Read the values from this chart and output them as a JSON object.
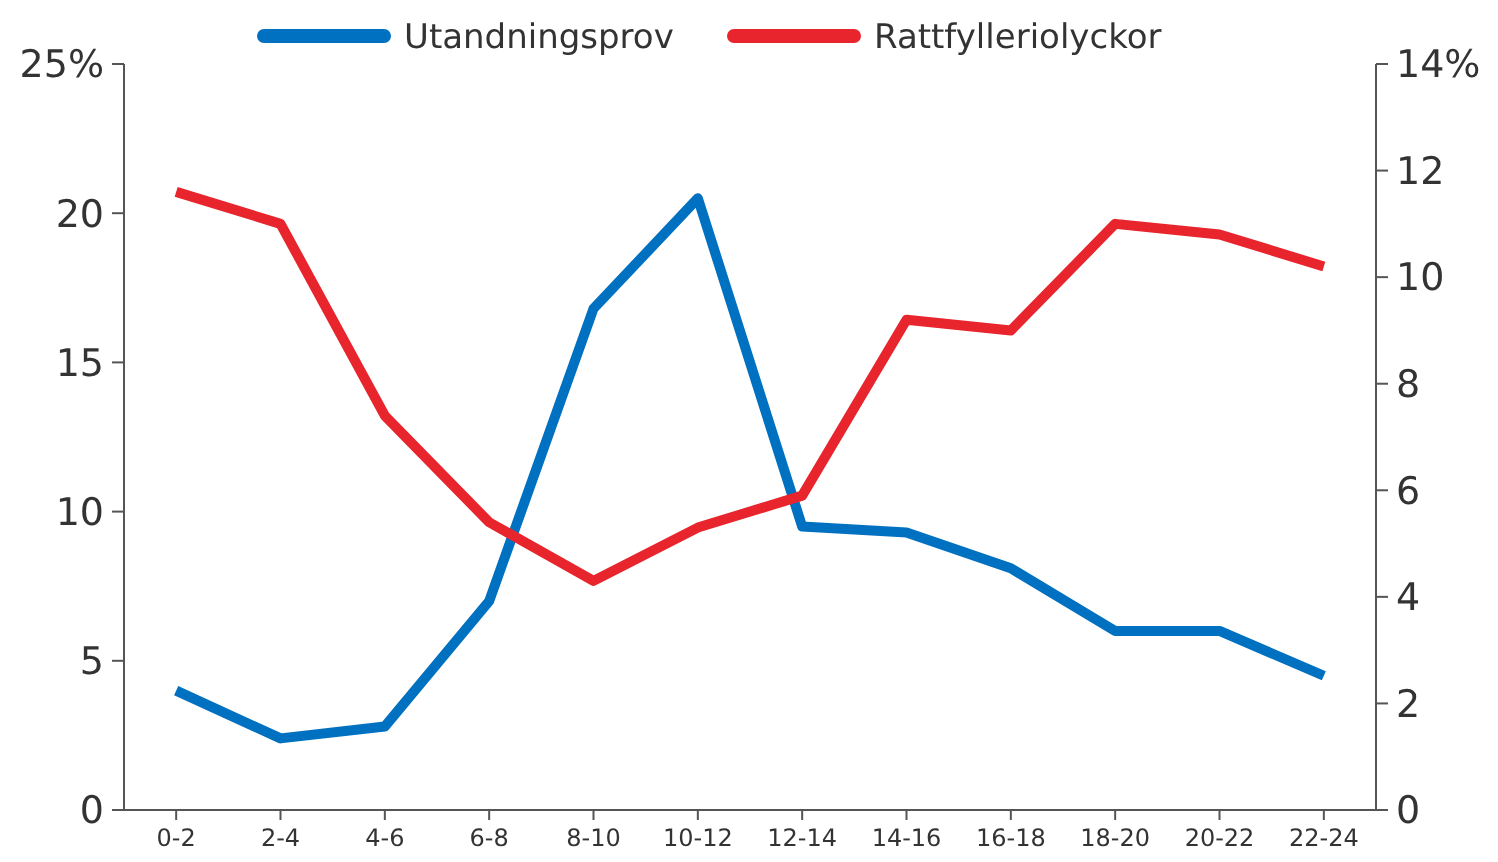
{
  "chart_data": {
    "type": "line",
    "categories": [
      "0-2",
      "2-4",
      "4-6",
      "6-8",
      "8-10",
      "10-12",
      "12-14",
      "14-16",
      "16-18",
      "18-20",
      "20-22",
      "22-24"
    ],
    "series": [
      {
        "name": "Utandningsprov",
        "color": "#0070c0",
        "values": [
          4.0,
          2.4,
          2.8,
          7.0,
          16.8,
          20.5,
          9.5,
          9.3,
          8.1,
          6.0,
          6.0,
          4.5
        ]
      },
      {
        "name": "Rattfylleriolyckor",
        "color": "#e8242c",
        "axis": "y2",
        "values": [
          11.6,
          11.0,
          7.4,
          5.4,
          4.3,
          5.3,
          5.9,
          9.2,
          9.0,
          11.0,
          10.8,
          10.2
        ]
      }
    ],
    "ylim": [
      0,
      25
    ],
    "yticks": [
      0,
      5,
      10,
      15,
      20,
      {
        "value": 25,
        "label": "25%"
      }
    ],
    "y2lim": [
      0,
      14
    ],
    "y2ticks": [
      0,
      2,
      4,
      6,
      8,
      10,
      12,
      {
        "value": 14,
        "label": "14%"
      }
    ],
    "grid": false,
    "legend": "top",
    "marker": "none",
    "line_style": "solid"
  }
}
